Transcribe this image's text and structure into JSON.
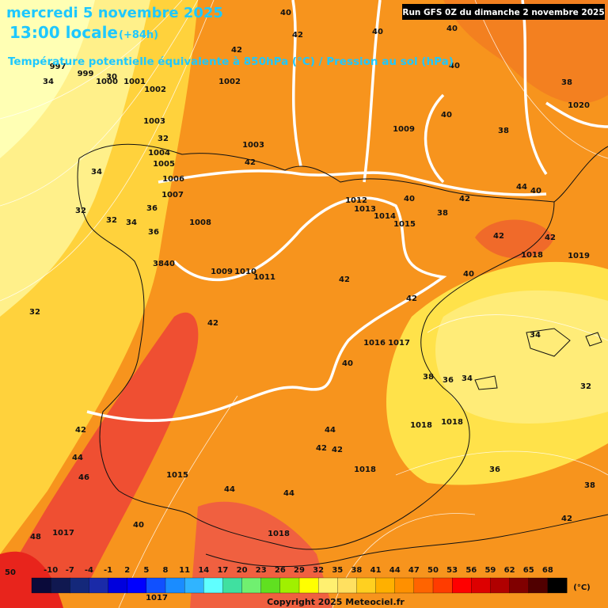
{
  "header": {
    "date": "mercredi 5 novembre 2025",
    "time": "13:00 locale",
    "lead": "(+84h)",
    "subtitle": "Température potentielle équivalente à 850hPa (°C) / Pression au sol (hPa)",
    "run": "Run GFS 0Z du dimanche 2 novembre 2025"
  },
  "map_labels": {
    "pressure": [
      999,
      1000,
      1001,
      1002,
      1003,
      1004,
      1005,
      1006,
      1007,
      1008,
      1009,
      1010,
      1011,
      1012,
      1013,
      1014,
      1015,
      1016,
      1017,
      1018,
      1018,
      1018,
      1015,
      1017,
      1018,
      1018,
      1019,
      1020,
      1009,
      1003,
      1002,
      1017,
      997
    ],
    "temperature": [
      40,
      42,
      40,
      40,
      40,
      42,
      38,
      40,
      38,
      42,
      44,
      40,
      42,
      40,
      38,
      42,
      42,
      40,
      42,
      42,
      42,
      40,
      38,
      36,
      34,
      34,
      32,
      36,
      38,
      42,
      44,
      42,
      42,
      44,
      44,
      40,
      48,
      42,
      44,
      46,
      50,
      32,
      34,
      34,
      32,
      32,
      34,
      36,
      36,
      38,
      40,
      30,
      32
    ]
  },
  "colorbar": {
    "unit": "(°C)",
    "ticks": [
      -10,
      -7,
      -4,
      -1,
      2,
      5,
      8,
      11,
      14,
      17,
      20,
      23,
      26,
      29,
      32,
      35,
      38,
      41,
      44,
      47,
      50,
      53,
      56,
      59,
      62,
      65,
      68
    ],
    "colors": [
      "#0a0a3a",
      "#101850",
      "#14287a",
      "#1a2aa8",
      "#0000dd",
      "#0000ff",
      "#1050ff",
      "#1a8cff",
      "#30b4ff",
      "#60ffff",
      "#40e0a0",
      "#70f070",
      "#60e020",
      "#a0f000",
      "#ffff00",
      "#fff070",
      "#ffe060",
      "#ffd020",
      "#ffb000",
      "#ff9000",
      "#ff6400",
      "#ff3c00",
      "#ff0000",
      "#dd0000",
      "#b00000",
      "#800000",
      "#500000",
      "#000000"
    ]
  },
  "footer": {
    "copyright": "Copyright 2025 Meteociel.fr"
  }
}
